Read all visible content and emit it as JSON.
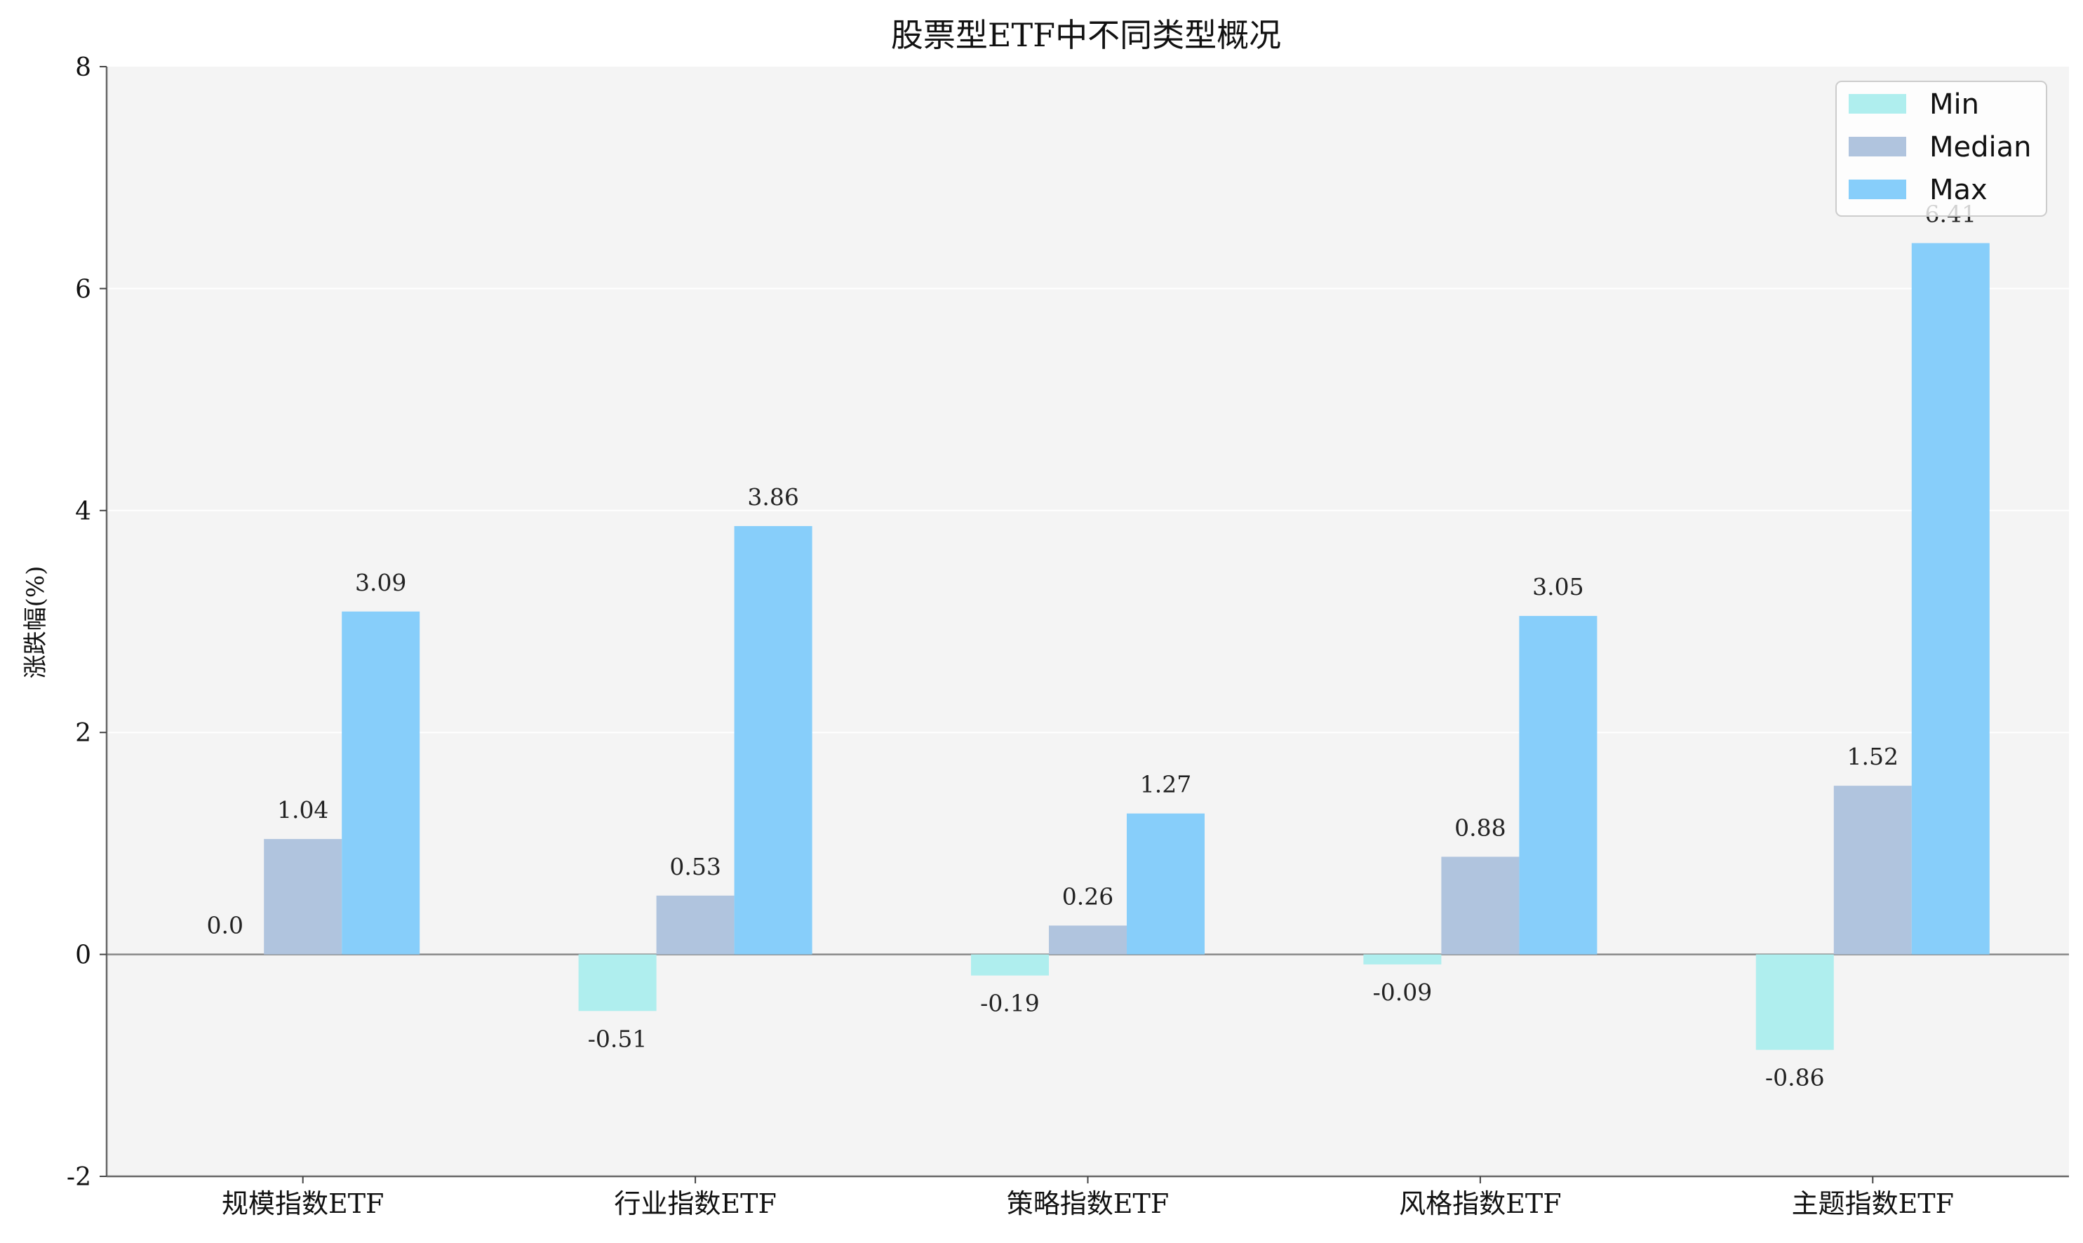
{
  "chart_data": {
    "type": "bar",
    "title": "股票型ETF中不同类型概况",
    "ylabel": "涨跌幅(%)",
    "xlabel": "",
    "ylim": [
      -2,
      8
    ],
    "yticks": [
      -2,
      0,
      2,
      4,
      6,
      8
    ],
    "categories": [
      "规模指数ETF",
      "行业指数ETF",
      "策略指数ETF",
      "风格指数ETF",
      "主题指数ETF"
    ],
    "series": [
      {
        "name": "Min",
        "values": [
          0.0,
          -0.51,
          -0.19,
          -0.09,
          -0.86
        ],
        "labels": [
          "0.0",
          "-0.51",
          "-0.19",
          "-0.09",
          "-0.86"
        ],
        "color": "#AFEEEE"
      },
      {
        "name": "Median",
        "values": [
          1.04,
          0.53,
          0.26,
          0.88,
          1.52
        ],
        "labels": [
          "1.04",
          "0.53",
          "0.26",
          "0.88",
          "1.52"
        ],
        "color": "#B0C4DE"
      },
      {
        "name": "Max",
        "values": [
          3.09,
          3.86,
          1.27,
          3.05,
          6.41
        ],
        "labels": [
          "3.09",
          "3.86",
          "1.27",
          "3.05",
          "6.41"
        ],
        "color": "#87CEFA"
      }
    ],
    "grid": "horizontal",
    "legend_position": "top-right",
    "background": "#F4F4F4"
  }
}
